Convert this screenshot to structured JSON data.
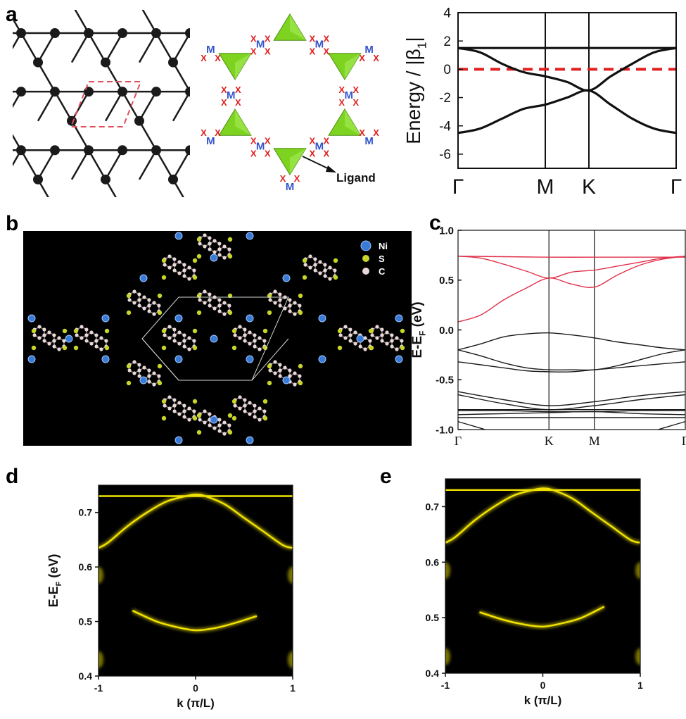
{
  "panel_labels": {
    "a": "a",
    "b": "b",
    "c": "c",
    "d": "d",
    "e": "e"
  },
  "panel_a": {
    "site_label": "M",
    "ligand_site_label": "X",
    "ligand_text": "Ligand",
    "colors": {
      "lattice": "#1a1a1a",
      "unit_cell": "#e0505a",
      "triangle": "#7ed321",
      "metal": "#3355cc",
      "ligand_x": "#e02020"
    }
  },
  "panel_b": {
    "legend": [
      {
        "label": "Ni",
        "color": "#3a7bd5"
      },
      {
        "label": "S",
        "color": "#c8d62a"
      },
      {
        "label": "C",
        "color": "#e8d8d8"
      }
    ]
  },
  "chart_data": [
    {
      "id": "a-right",
      "type": "line",
      "ylabel": "Energy / |β",
      "ylabel_sub": "1",
      "ylabel_close": "|",
      "ylim": [
        -7,
        4
      ],
      "yticks": [
        -6,
        -4,
        -2,
        0,
        2,
        4
      ],
      "xtick_labels": [
        "Γ",
        "M",
        "K",
        "Γ"
      ],
      "xtick_positions": [
        0,
        1,
        1.5,
        2.5
      ],
      "fermi_level": 0,
      "fermi_color": "#e02020",
      "series": [
        {
          "x": [
            0,
            0.5,
            1,
            1.5,
            2,
            2.5
          ],
          "y": [
            1.5,
            1.5,
            1.5,
            1.5,
            1.5,
            1.5
          ]
        },
        {
          "x": [
            0,
            0.25,
            0.5,
            0.75,
            1,
            1.25,
            1.5,
            1.75,
            2,
            2.25,
            2.5
          ],
          "y": [
            1.5,
            1.2,
            0.4,
            -0.2,
            -0.5,
            -0.9,
            -1.5,
            -0.5,
            0.4,
            1.2,
            1.5
          ]
        },
        {
          "x": [
            0,
            0.25,
            0.5,
            0.75,
            1,
            1.25,
            1.5,
            1.75,
            2,
            2.25,
            2.5
          ],
          "y": [
            -4.5,
            -4.2,
            -3.5,
            -2.8,
            -2.5,
            -2.0,
            -1.5,
            -2.5,
            -3.5,
            -4.2,
            -4.5
          ]
        }
      ]
    },
    {
      "id": "c",
      "type": "line",
      "ylabel": "E-E",
      "ylabel_sub": "F",
      "ylabel_unit": " (eV)",
      "ylim": [
        -1.0,
        1.0
      ],
      "yticks": [
        -1.0,
        -0.5,
        0.0,
        0.5,
        1.0
      ],
      "ytick_labels": [
        "-1.0",
        "-0.5",
        "0.0",
        "0.5",
        "1.0"
      ],
      "xtick_labels": [
        "Γ",
        "K",
        "M",
        "Γ"
      ],
      "xtick_positions": [
        0,
        1,
        1.5,
        2.5
      ],
      "series": [
        {
          "color": "#e0304a",
          "x": [
            0,
            0.5,
            1,
            1.5,
            2,
            2.5
          ],
          "y": [
            0.74,
            0.735,
            0.73,
            0.73,
            0.73,
            0.73
          ]
        },
        {
          "color": "#e0304a",
          "x": [
            0,
            0.25,
            0.5,
            0.75,
            1,
            1.25,
            1.5,
            1.75,
            2,
            2.25,
            2.5
          ],
          "y": [
            0.74,
            0.72,
            0.66,
            0.59,
            0.52,
            0.58,
            0.6,
            0.64,
            0.68,
            0.72,
            0.74
          ]
        },
        {
          "color": "#e0304a",
          "x": [
            0,
            0.25,
            0.5,
            0.75,
            1,
            1.25,
            1.5,
            1.75,
            2,
            2.25,
            2.5
          ],
          "y": [
            0.08,
            0.15,
            0.3,
            0.42,
            0.52,
            0.46,
            0.43,
            0.55,
            0.65,
            0.71,
            0.74
          ]
        },
        {
          "color": "#1a1a1a",
          "x": [
            0,
            0.25,
            0.5,
            0.75,
            1,
            1.25,
            1.5,
            1.75,
            2,
            2.25,
            2.5
          ],
          "y": [
            -0.2,
            -0.14,
            -0.07,
            -0.04,
            -0.03,
            -0.05,
            -0.08,
            -0.12,
            -0.15,
            -0.18,
            -0.2
          ]
        },
        {
          "color": "#1a1a1a",
          "x": [
            0,
            0.25,
            0.5,
            0.75,
            1,
            1.25,
            1.5,
            1.75,
            2,
            2.25,
            2.5
          ],
          "y": [
            -0.2,
            -0.26,
            -0.33,
            -0.38,
            -0.4,
            -0.4,
            -0.4,
            -0.36,
            -0.3,
            -0.24,
            -0.2
          ]
        },
        {
          "color": "#1a1a1a",
          "x": [
            0,
            0.25,
            0.5,
            0.75,
            1,
            1.25,
            1.5,
            1.75,
            2,
            2.25,
            2.5
          ],
          "y": [
            -0.32,
            -0.35,
            -0.38,
            -0.41,
            -0.42,
            -0.42,
            -0.4,
            -0.38,
            -0.36,
            -0.34,
            -0.32
          ]
        },
        {
          "color": "#1a1a1a",
          "x": [
            0,
            0.5,
            1,
            1.5,
            2,
            2.5
          ],
          "y": [
            -0.62,
            -0.7,
            -0.76,
            -0.72,
            -0.66,
            -0.62
          ]
        },
        {
          "color": "#1a1a1a",
          "x": [
            0,
            0.5,
            1,
            1.5,
            2,
            2.5
          ],
          "y": [
            -0.65,
            -0.74,
            -0.8,
            -0.76,
            -0.7,
            -0.65
          ]
        },
        {
          "color": "#1a1a1a",
          "x": [
            0,
            0.5,
            1,
            1.5,
            2,
            2.5
          ],
          "y": [
            -0.8,
            -0.8,
            -0.8,
            -0.8,
            -0.8,
            -0.8
          ]
        },
        {
          "color": "#1a1a1a",
          "x": [
            0,
            0.5,
            1,
            1.5,
            2,
            2.5
          ],
          "y": [
            -0.81,
            -0.81,
            -0.82,
            -0.82,
            -0.81,
            -0.81
          ]
        },
        {
          "color": "#1a1a1a",
          "x": [
            0,
            0.5,
            1,
            1.5,
            2,
            2.5
          ],
          "y": [
            -0.85,
            -0.84,
            -0.83,
            -0.82,
            -0.84,
            -0.85
          ]
        },
        {
          "color": "#1a1a1a",
          "x": [
            0,
            0.5,
            1,
            1.5,
            2,
            2.5
          ],
          "y": [
            -0.88,
            -0.88,
            -0.88,
            -0.88,
            -0.88,
            -0.88
          ]
        },
        {
          "color": "#1a1a1a",
          "x": [
            0,
            0.15,
            0.3
          ],
          "y": [
            -0.92,
            -0.96,
            -1.0
          ]
        },
        {
          "color": "#1a1a1a",
          "x": [
            2.2,
            2.35,
            2.5
          ],
          "y": [
            -1.0,
            -0.96,
            -0.92
          ]
        }
      ]
    },
    {
      "id": "d",
      "type": "heatmap",
      "xlabel": "k (π/L)",
      "ylabel": "E-E",
      "ylabel_sub": "F",
      "ylabel_unit": " (eV)",
      "xlim": [
        -1,
        1
      ],
      "ylim": [
        0.4,
        0.75
      ],
      "xticks": [
        -1,
        0,
        1
      ],
      "xtick_labels": [
        "-1",
        "0",
        "1"
      ],
      "yticks": [
        0.4,
        0.5,
        0.6,
        0.7
      ],
      "ytick_labels": [
        "0.4",
        "0.5",
        "0.6",
        "0.7"
      ],
      "band_color": "#f2e400",
      "series": [
        {
          "x": [
            -1,
            1
          ],
          "y": [
            0.73,
            0.73
          ]
        },
        {
          "x": [
            -1,
            -0.9,
            -0.7,
            -0.5,
            -0.3,
            -0.1,
            0,
            0.1,
            0.3,
            0.5,
            0.7,
            0.9,
            1
          ],
          "y": [
            0.635,
            0.645,
            0.675,
            0.7,
            0.72,
            0.73,
            0.733,
            0.73,
            0.715,
            0.69,
            0.665,
            0.64,
            0.635
          ]
        },
        {
          "x": [
            -0.65,
            -0.4,
            -0.2,
            0,
            0.2,
            0.4,
            0.63
          ],
          "y": [
            0.52,
            0.5,
            0.49,
            0.484,
            0.488,
            0.497,
            0.51
          ]
        }
      ]
    },
    {
      "id": "e",
      "type": "heatmap",
      "xlabel": "k (π/L)",
      "xlim": [
        -1,
        1
      ],
      "ylim": [
        0.4,
        0.75
      ],
      "xticks": [
        -1,
        0,
        1
      ],
      "xtick_labels": [
        "-1",
        "0",
        "1"
      ],
      "yticks": [
        0.4,
        0.5,
        0.6,
        0.7
      ],
      "ytick_labels": [
        "0.4",
        "0.5",
        "0.6",
        "0.7"
      ],
      "band_color": "#f2e400",
      "series": [
        {
          "x": [
            -1,
            1
          ],
          "y": [
            0.73,
            0.73
          ]
        },
        {
          "x": [
            -1,
            -0.9,
            -0.7,
            -0.5,
            -0.3,
            -0.1,
            0,
            0.1,
            0.3,
            0.5,
            0.7,
            0.9,
            1
          ],
          "y": [
            0.635,
            0.645,
            0.675,
            0.7,
            0.72,
            0.73,
            0.733,
            0.73,
            0.715,
            0.69,
            0.665,
            0.64,
            0.635
          ]
        },
        {
          "x": [
            -0.65,
            -0.4,
            -0.2,
            0,
            0.2,
            0.4,
            0.63
          ],
          "y": [
            0.51,
            0.496,
            0.488,
            0.484,
            0.49,
            0.5,
            0.52
          ]
        }
      ]
    }
  ]
}
